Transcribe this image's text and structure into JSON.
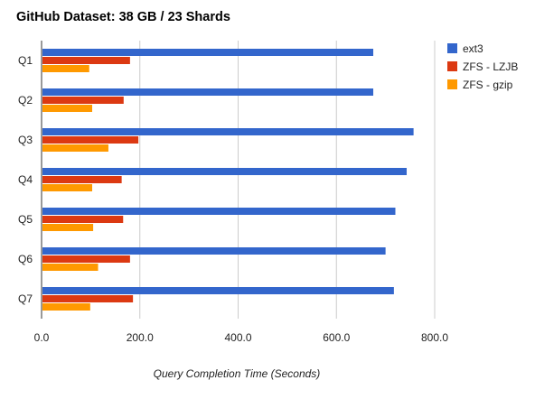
{
  "chart_data": {
    "type": "bar",
    "orientation": "horizontal",
    "title": "GitHub Dataset: 38 GB / 23 Shards",
    "xlabel": "Query Completion Time (Seconds)",
    "ylabel": "",
    "categories": [
      "Q1",
      "Q2",
      "Q3",
      "Q4",
      "Q5",
      "Q6",
      "Q7"
    ],
    "series": [
      {
        "name": "ext3",
        "color": "#3366cc",
        "values": [
          675,
          675,
          757,
          743,
          720,
          700,
          717
        ]
      },
      {
        "name": "ZFS - LZJB",
        "color": "#dc3912",
        "values": [
          180,
          167,
          197,
          163,
          166,
          180,
          186
        ]
      },
      {
        "name": "ZFS - gzip",
        "color": "#ff9900",
        "values": [
          97,
          103,
          136,
          103,
          105,
          115,
          99
        ]
      }
    ],
    "xlim": [
      0,
      800
    ],
    "xticks": [
      0,
      200,
      400,
      600,
      800
    ],
    "xtick_labels": [
      "0.0",
      "200.0",
      "400.0",
      "600.0",
      "800.0"
    ],
    "grid": true,
    "legend_position": "right"
  }
}
